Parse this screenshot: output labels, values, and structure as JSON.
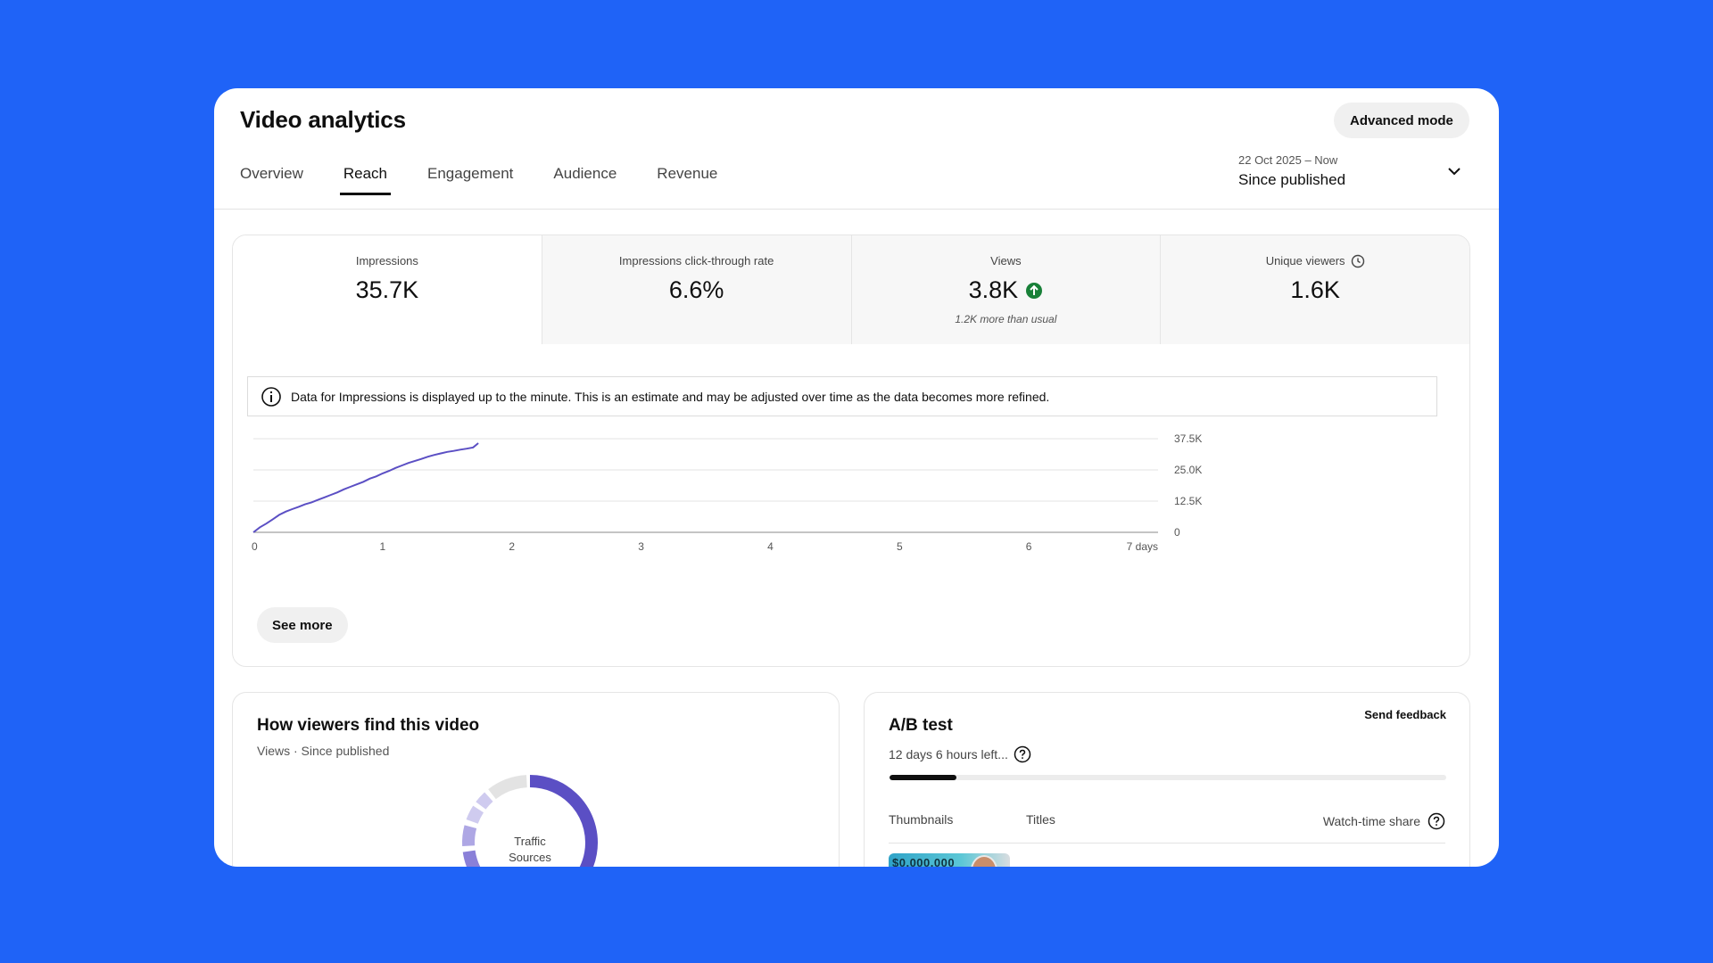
{
  "header": {
    "title": "Video analytics",
    "advanced_mode_label": "Advanced mode"
  },
  "tabs": [
    {
      "label": "Overview",
      "active": false
    },
    {
      "label": "Reach",
      "active": true
    },
    {
      "label": "Engagement",
      "active": false
    },
    {
      "label": "Audience",
      "active": false
    },
    {
      "label": "Revenue",
      "active": false
    }
  ],
  "date_picker": {
    "range": "22 Oct 2025 – Now",
    "label": "Since published",
    "icon": "chevron-down-icon"
  },
  "metrics": [
    {
      "label": "Impressions",
      "value": "35.7K"
    },
    {
      "label": "Impressions click-through rate",
      "value": "6.6%"
    },
    {
      "label": "Views",
      "value": "3.8K",
      "note": "1.2K more than usual",
      "trend_icon": "arrow-up-circle-icon",
      "trend_color": "#188038"
    },
    {
      "label": "Unique viewers",
      "value": "1.6K",
      "icon": "clock-icon"
    }
  ],
  "info_banner": {
    "icon": "info-icon",
    "text": "Data for Impressions is displayed up to the minute. This is an estimate and may be adjusted over time as the data becomes more refined."
  },
  "chart_data": {
    "type": "line",
    "title": "",
    "xlabel": "",
    "ylabel": "",
    "x_ticks": [
      "0",
      "1",
      "2",
      "3",
      "4",
      "5",
      "6",
      "7 days"
    ],
    "y_ticks": [
      "0",
      "12.5K",
      "25.0K",
      "37.5K"
    ],
    "xlim": [
      0,
      7
    ],
    "ylim": [
      0,
      37500
    ],
    "grid": true,
    "color": "#5b4fc4",
    "series": [
      {
        "x": [
          0,
          0.05,
          0.1,
          0.15,
          0.2,
          0.25,
          0.3,
          0.35,
          0.4,
          0.45,
          0.5,
          0.55,
          0.6,
          0.65,
          0.7,
          0.75,
          0.8,
          0.85,
          0.9,
          0.95,
          1.0,
          1.05,
          1.1,
          1.15,
          1.2,
          1.25,
          1.3,
          1.35,
          1.4,
          1.45,
          1.5,
          1.55,
          1.6,
          1.65,
          1.7,
          1.74
        ],
        "y": [
          0,
          2000,
          3500,
          5200,
          7000,
          8300,
          9300,
          10200,
          11200,
          12000,
          13000,
          14000,
          15000,
          16000,
          17200,
          18200,
          19200,
          20200,
          21500,
          22400,
          23600,
          24600,
          25800,
          26800,
          27800,
          28600,
          29400,
          30300,
          31000,
          31600,
          32200,
          32600,
          33100,
          33500,
          34000,
          35700
        ]
      }
    ]
  },
  "see_more_label": "See more",
  "traffic": {
    "title": "How viewers find this video",
    "subtitle": "Views · Since published",
    "donut_label_line1": "Traffic",
    "donut_label_line2": "Sources",
    "colors": [
      "#5b4fc4",
      "#8a80d8",
      "#aea7e4",
      "#cfcbef",
      "#e3e3e3"
    ]
  },
  "ab_test": {
    "title": "A/B test",
    "send_feedback": "Send feedback",
    "time_left": "12 days 6 hours left...",
    "help_icon": "help-icon",
    "progress": 0.12,
    "col_thumbnails": "Thumbnails",
    "col_titles": "Titles",
    "col_watch_share": "Watch-time share",
    "thumb_text": "$0,000,000"
  }
}
